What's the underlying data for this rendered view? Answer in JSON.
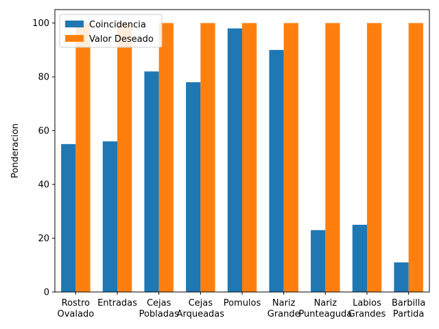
{
  "chart_data": {
    "type": "bar",
    "title": "",
    "xlabel": "",
    "ylabel": "Ponderacion",
    "ylim": [
      0,
      105
    ],
    "yticks": [
      0,
      20,
      40,
      60,
      80,
      100
    ],
    "grid": false,
    "legend_position": "top-left",
    "categories": [
      [
        "Rostro",
        "Ovalado"
      ],
      [
        "Entradas"
      ],
      [
        "Cejas",
        "Pobladas"
      ],
      [
        "Cejas",
        "Arqueadas"
      ],
      [
        "Pomulos"
      ],
      [
        "Nariz",
        "Grande"
      ],
      [
        "Nariz",
        "Punteaguda"
      ],
      [
        "Labios",
        "Grandes"
      ],
      [
        "Barbilla",
        "Partida"
      ]
    ],
    "series": [
      {
        "name": "Coincidencia",
        "color": "#1f77b4",
        "values": [
          55,
          56,
          82,
          78,
          98,
          90,
          23,
          25,
          11
        ]
      },
      {
        "name": "Valor Deseado",
        "color": "#ff7f0e",
        "values": [
          100,
          100,
          100,
          100,
          100,
          100,
          100,
          100,
          100
        ]
      }
    ]
  }
}
